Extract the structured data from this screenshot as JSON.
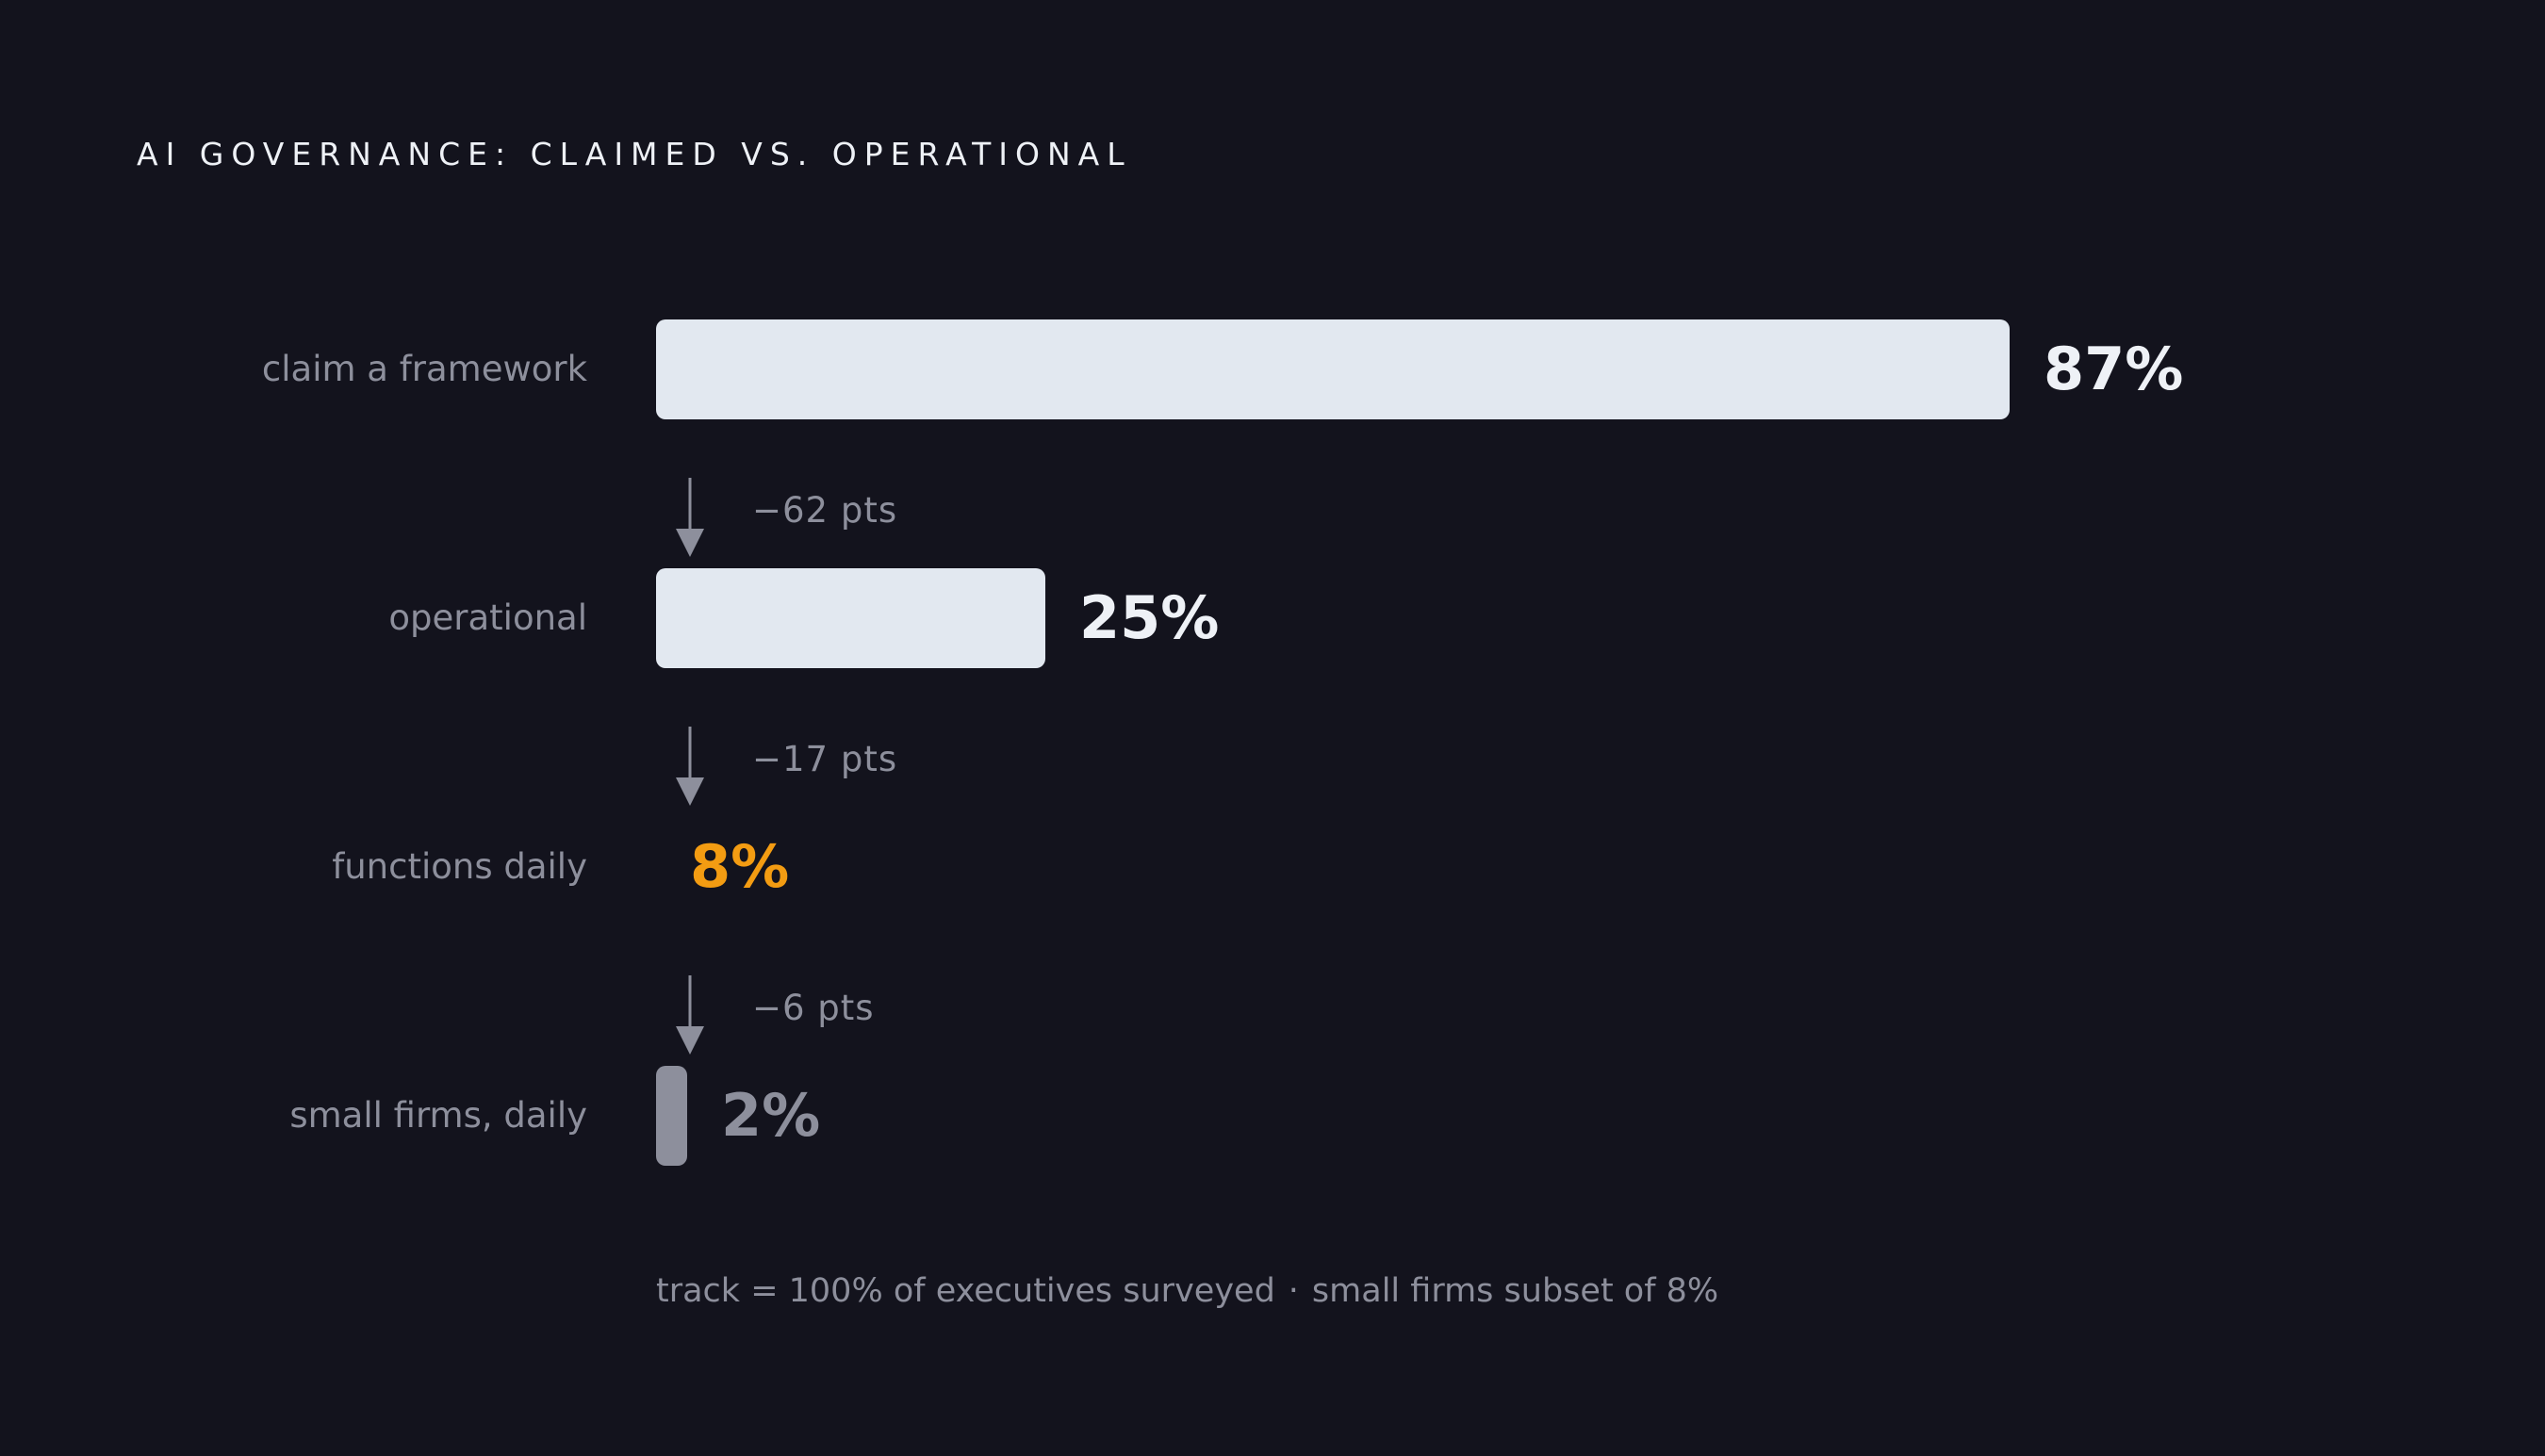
{
  "title": "AI GOVERNANCE: CLAIMED VS. OPERATIONAL",
  "colors": {
    "background": "#13131d",
    "bar": "#e2e8f0",
    "bar_muted": "#8d8f9c",
    "highlight": "#f39c12",
    "label": "#8d8f9c",
    "value": "#eef1f6"
  },
  "chart_data": {
    "type": "bar",
    "orientation": "horizontal",
    "xlim": [
      0,
      100
    ],
    "categories": [
      "claim a framework",
      "operational",
      "functions daily",
      "small firms, daily"
    ],
    "values": [
      87,
      25,
      8,
      2
    ],
    "value_labels": [
      "87%",
      "25%",
      "8%",
      "2%"
    ],
    "drops": [
      {
        "from": "claim a framework",
        "to": "operational",
        "value": -62,
        "label": "−62 pts"
      },
      {
        "from": "operational",
        "to": "functions daily",
        "value": -17,
        "label": "−17 pts"
      },
      {
        "from": "functions daily",
        "to": "small firms, daily",
        "value": -6,
        "label": "−6 pts"
      }
    ],
    "highlight_category": "functions daily",
    "footnote": {
      "part1": "track = 100% of executives surveyed",
      "separator": "·",
      "part2": "small firms subset of 8%"
    }
  }
}
